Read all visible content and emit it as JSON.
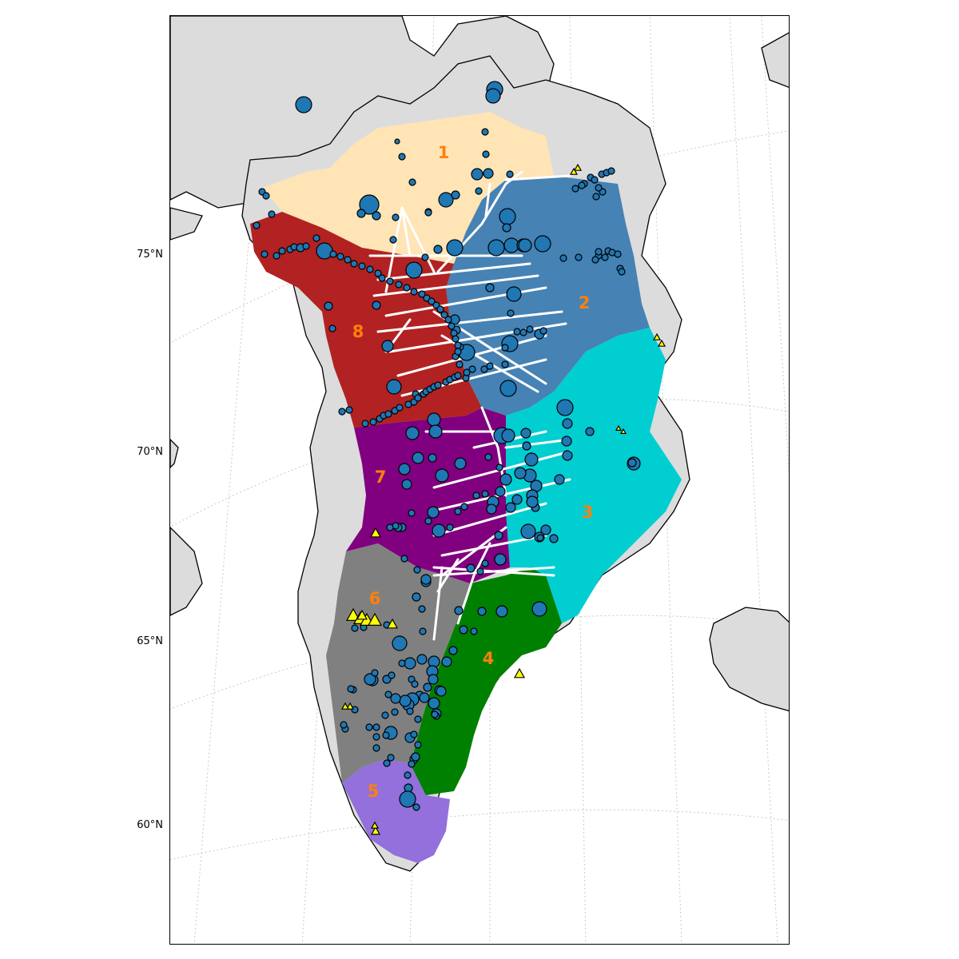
{
  "map": {
    "latitude_labels": [
      {
        "text": "75°N",
        "lat": 75
      },
      {
        "text": "70°N",
        "lat": 70
      },
      {
        "text": "65°N",
        "lat": 65
      },
      {
        "text": "60°N",
        "lat": 60
      }
    ],
    "regions": [
      {
        "label": "1",
        "color": "#ffe4b5"
      },
      {
        "label": "2",
        "color": "#4682b4"
      },
      {
        "label": "3",
        "color": "#00ced1"
      },
      {
        "label": "4",
        "color": "#008000"
      },
      {
        "label": "5",
        "color": "#9370db"
      },
      {
        "label": "6",
        "color": "#808080"
      },
      {
        "label": "7",
        "color": "#800080"
      },
      {
        "label": "8",
        "color": "#b22222"
      }
    ],
    "colors": {
      "land": "#dcdcdc",
      "coastline": "#000000",
      "site_marker": "#1f77b4",
      "triangle_marker": "#ffff00",
      "flight_line": "#ffffff",
      "graticule": "#c8c8c8",
      "region_label": "#ff7f0e"
    }
  }
}
